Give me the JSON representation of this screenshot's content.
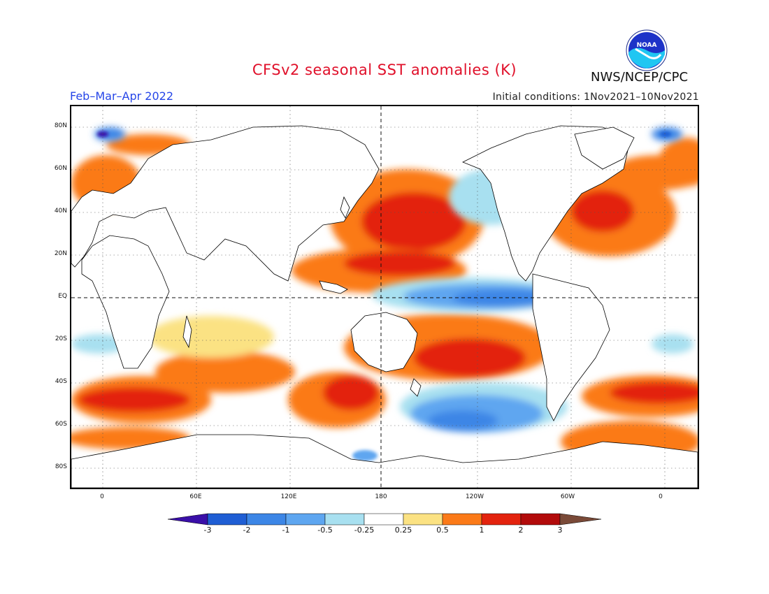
{
  "header": {
    "title": "CFSv2 seasonal SST anomalies (K)",
    "season": "Feb–Mar–Apr 2022",
    "initial_conditions": "Initial conditions: 1Nov2021–10Nov2021",
    "agency": "NWS/NCEP/CPC",
    "logo_text": "NOAA"
  },
  "map": {
    "lat_labels": [
      "80N",
      "60N",
      "40N",
      "20N",
      "EQ",
      "20S",
      "40S",
      "60S",
      "80S"
    ],
    "lon_labels": [
      "0",
      "60E",
      "120E",
      "180",
      "120W",
      "60W",
      "0"
    ],
    "lon_range": [
      -20,
      380
    ],
    "lat_range": [
      -90,
      90
    ]
  },
  "colorbar": {
    "labels": [
      "-3",
      "-2",
      "-1",
      "-0.5",
      "-0.25",
      "0.25",
      "0.5",
      "1",
      "2",
      "3"
    ],
    "colors": [
      "#3a0fa8",
      "#1f5ed4",
      "#3c86e6",
      "#5ea6f0",
      "#a8e0f0",
      "#ffffff",
      "#fbe283",
      "#fb7a18",
      "#e3230e",
      "#b20b0b",
      "#7a4a38"
    ]
  },
  "colors": {
    "title": "#e0102a",
    "season": "#2646e8"
  }
}
